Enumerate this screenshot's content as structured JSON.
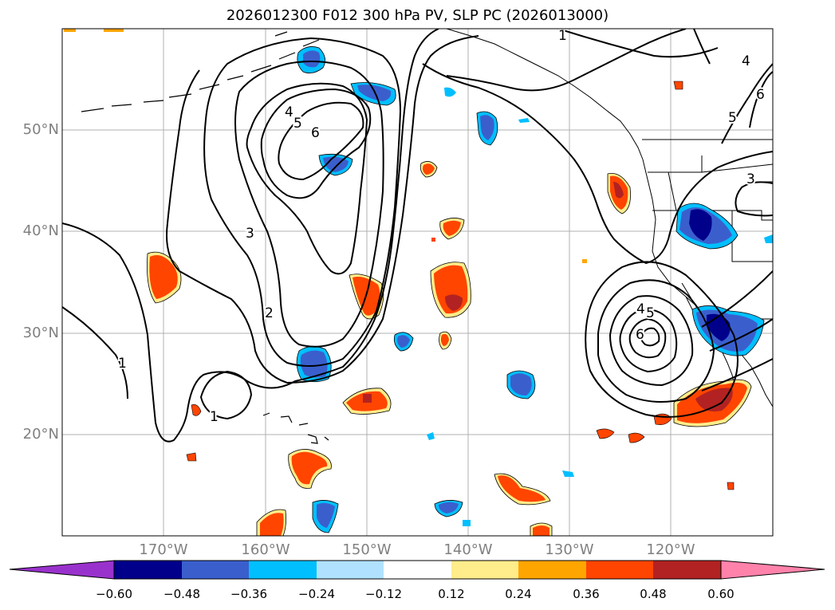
{
  "title": "2026012300 F012 300 hPa PV, SLP PC (2026013000)",
  "map": {
    "lon_labels": [
      "170°W",
      "160°W",
      "150°W",
      "140°W",
      "130°W",
      "120°W"
    ],
    "lat_labels": [
      "50°N",
      "40°N",
      "30°N",
      "20°N"
    ],
    "contour_labels": [
      "1",
      "1",
      "1",
      "2",
      "3",
      "4",
      "5",
      "6",
      "4",
      "5",
      "6",
      "3",
      "4",
      "5",
      "6"
    ]
  },
  "colorbar": {
    "ticks": [
      "−0.60",
      "−0.48",
      "−0.36",
      "−0.24",
      "−0.12",
      "0.12",
      "0.24",
      "0.36",
      "0.48",
      "0.60"
    ],
    "colors": [
      "#9932cc",
      "#00008b",
      "#3a5fcd",
      "#00bfff",
      "#b0e2ff",
      "#ffffff",
      "#ffec8b",
      "#ffa500",
      "#ff4500",
      "#b22222",
      "#ff82ab"
    ]
  }
}
